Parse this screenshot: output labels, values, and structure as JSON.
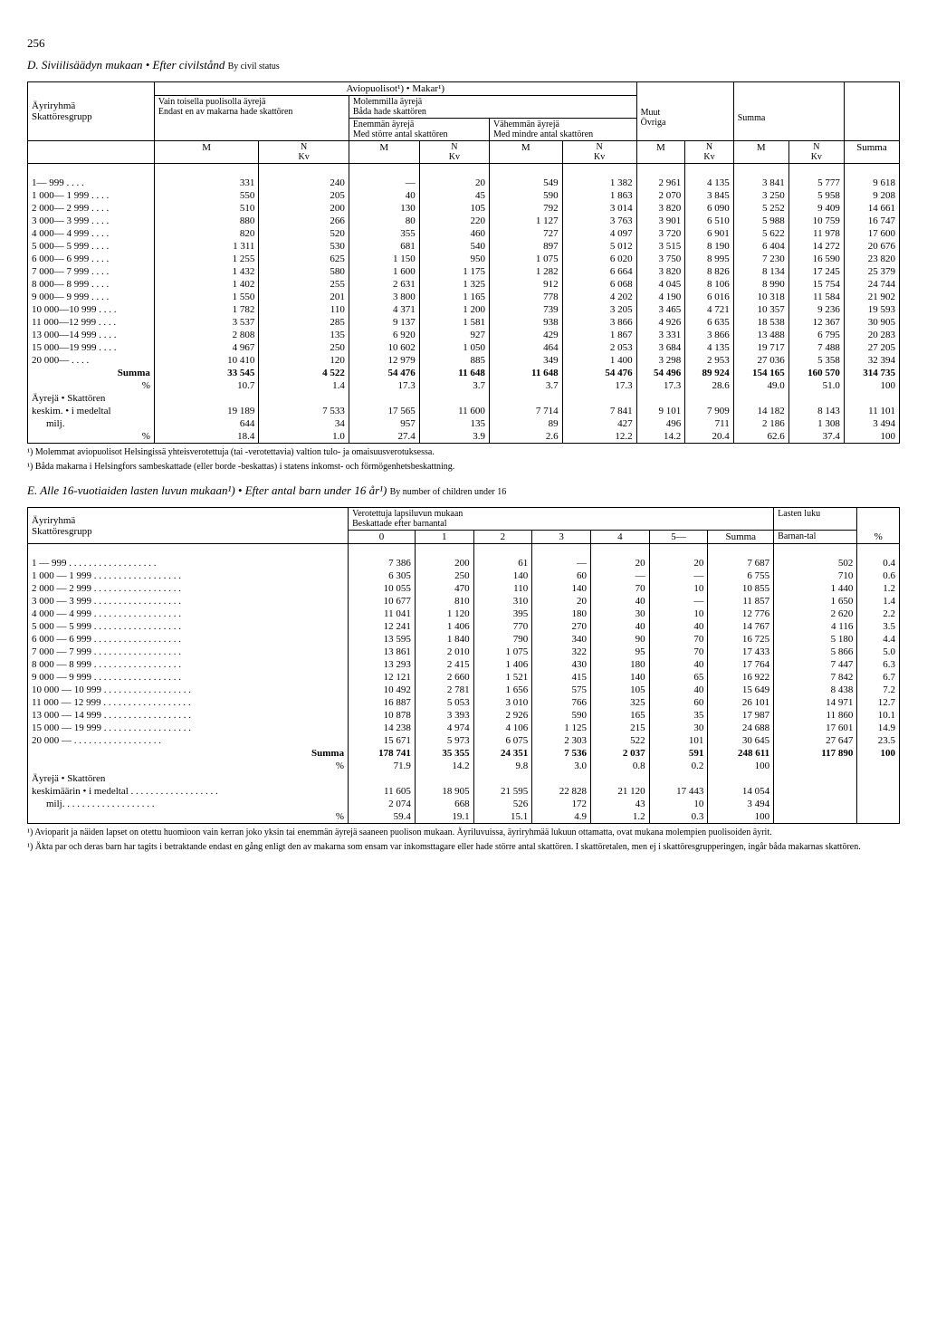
{
  "page_number": "256",
  "tableD": {
    "title_prefix": "D. Siviilisäädyn mukaan",
    "title_bullet": "•",
    "title_it": "Efter civilstånd",
    "title_by": "By civil status",
    "head": {
      "aviopuolisot": "Aviopuolisot¹) • Makar¹)",
      "vain_toisella": "Vain toisella puolisolla äyrejä",
      "molemmilla": "Molemmilla äyrejä",
      "bada": "Båda hade skattören",
      "ayriryhma": "Äyriryhmä",
      "skattoresgrupp": "Skattöresgrupp",
      "endast": "Endast en av makarna hade skattören",
      "enemman": "Enemmän äyrejä",
      "med_storre": "Med större antal skattören",
      "vahemman": "Vähemmän äyrejä",
      "med_mindre": "Med mindre antal skattören",
      "muut": "Muut",
      "ovriga": "Övriga",
      "summa": "Summa",
      "M": "M",
      "NKv": "N",
      "Kv": "Kv"
    },
    "rows": [
      {
        "label": "1— 999",
        "m1": "331",
        "n1": "240",
        "m2": "—",
        "n2": "20",
        "m3": "549",
        "n3": "1 382",
        "m4": "2 961",
        "n4": "4 135",
        "m5": "3 841",
        "n5": "5 777",
        "sum": "9 618"
      },
      {
        "label": "1 000— 1 999",
        "m1": "550",
        "n1": "205",
        "m2": "40",
        "n2": "45",
        "m3": "590",
        "n3": "1 863",
        "m4": "2 070",
        "n4": "3 845",
        "m5": "3 250",
        "n5": "5 958",
        "sum": "9 208"
      },
      {
        "label": "2 000— 2 999",
        "m1": "510",
        "n1": "200",
        "m2": "130",
        "n2": "105",
        "m3": "792",
        "n3": "3 014",
        "m4": "3 820",
        "n4": "6 090",
        "m5": "5 252",
        "n5": "9 409",
        "sum": "14 661"
      },
      {
        "label": "3 000— 3 999",
        "m1": "880",
        "n1": "266",
        "m2": "80",
        "n2": "220",
        "m3": "1 127",
        "n3": "3 763",
        "m4": "3 901",
        "n4": "6 510",
        "m5": "5 988",
        "n5": "10 759",
        "sum": "16 747"
      },
      {
        "label": "4 000— 4 999",
        "m1": "820",
        "n1": "520",
        "m2": "355",
        "n2": "460",
        "m3": "727",
        "n3": "4 097",
        "m4": "3 720",
        "n4": "6 901",
        "m5": "5 622",
        "n5": "11 978",
        "sum": "17 600"
      },
      {
        "label": "5 000— 5 999",
        "m1": "1 311",
        "n1": "530",
        "m2": "681",
        "n2": "540",
        "m3": "897",
        "n3": "5 012",
        "m4": "3 515",
        "n4": "8 190",
        "m5": "6 404",
        "n5": "14 272",
        "sum": "20 676"
      },
      {
        "label": "6 000— 6 999",
        "m1": "1 255",
        "n1": "625",
        "m2": "1 150",
        "n2": "950",
        "m3": "1 075",
        "n3": "6 020",
        "m4": "3 750",
        "n4": "8 995",
        "m5": "7 230",
        "n5": "16 590",
        "sum": "23 820"
      },
      {
        "label": "7 000— 7 999",
        "m1": "1 432",
        "n1": "580",
        "m2": "1 600",
        "n2": "1 175",
        "m3": "1 282",
        "n3": "6 664",
        "m4": "3 820",
        "n4": "8 826",
        "m5": "8 134",
        "n5": "17 245",
        "sum": "25 379"
      },
      {
        "label": "8 000— 8 999",
        "m1": "1 402",
        "n1": "255",
        "m2": "2 631",
        "n2": "1 325",
        "m3": "912",
        "n3": "6 068",
        "m4": "4 045",
        "n4": "8 106",
        "m5": "8 990",
        "n5": "15 754",
        "sum": "24 744"
      },
      {
        "label": "9 000— 9 999",
        "m1": "1 550",
        "n1": "201",
        "m2": "3 800",
        "n2": "1 165",
        "m3": "778",
        "n3": "4 202",
        "m4": "4 190",
        "n4": "6 016",
        "m5": "10 318",
        "n5": "11 584",
        "sum": "21 902"
      },
      {
        "label": "10 000—10 999",
        "m1": "1 782",
        "n1": "110",
        "m2": "4 371",
        "n2": "1 200",
        "m3": "739",
        "n3": "3 205",
        "m4": "3 465",
        "n4": "4 721",
        "m5": "10 357",
        "n5": "9 236",
        "sum": "19 593"
      },
      {
        "label": "11 000—12 999",
        "m1": "3 537",
        "n1": "285",
        "m2": "9 137",
        "n2": "1 581",
        "m3": "938",
        "n3": "3 866",
        "m4": "4 926",
        "n4": "6 635",
        "m5": "18 538",
        "n5": "12 367",
        "sum": "30 905"
      },
      {
        "label": "13 000—14 999",
        "m1": "2 808",
        "n1": "135",
        "m2": "6 920",
        "n2": "927",
        "m3": "429",
        "n3": "1 867",
        "m4": "3 331",
        "n4": "3 866",
        "m5": "13 488",
        "n5": "6 795",
        "sum": "20 283"
      },
      {
        "label": "15 000—19 999",
        "m1": "4 967",
        "n1": "250",
        "m2": "10 602",
        "n2": "1 050",
        "m3": "464",
        "n3": "2 053",
        "m4": "3 684",
        "n4": "4 135",
        "m5": "19 717",
        "n5": "7 488",
        "sum": "27 205"
      },
      {
        "label": "20 000—",
        "m1": "10 410",
        "n1": "120",
        "m2": "12 979",
        "n2": "885",
        "m3": "349",
        "n3": "1 400",
        "m4": "3 298",
        "n4": "2 953",
        "m5": "27 036",
        "n5": "5 358",
        "sum": "32 394"
      }
    ],
    "summa_row": {
      "label": "Summa",
      "m1": "33 545",
      "n1": "4 522",
      "m2": "54 476",
      "n2": "11 648",
      "m3": "11 648",
      "n3": "54 476",
      "m4": "54 496",
      "n4": "89 924",
      "m5": "154 165",
      "n5": "160 570",
      "sum": "314 735"
    },
    "pct_row": {
      "label": "%",
      "m1": "10.7",
      "n1": "1.4",
      "m2": "17.3",
      "n2": "3.7",
      "m3": "3.7",
      "n3": "17.3",
      "m4": "17.3",
      "n4": "28.6",
      "m5": "49.0",
      "n5": "51.0",
      "sum": "100"
    },
    "ayreja_label": "Äyrejä • Skattören",
    "keskim_row": {
      "label": "keskim. • i medeltal",
      "m1": "19 189",
      "n1": "7 533",
      "m2": "17 565",
      "n2": "11 600",
      "m3": "7 714",
      "n3": "7 841",
      "m4": "9 101",
      "n4": "7 909",
      "m5": "14 182",
      "n5": "8 143",
      "sum": "11 101"
    },
    "milj_row": {
      "label": "milj.",
      "m1": "644",
      "n1": "34",
      "m2": "957",
      "n2": "135",
      "m3": "89",
      "n3": "427",
      "m4": "496",
      "n4": "711",
      "m5": "2 186",
      "n5": "1 308",
      "sum": "3 494"
    },
    "pct2_row": {
      "label": "%",
      "m1": "18.4",
      "n1": "1.0",
      "m2": "27.4",
      "n2": "3.9",
      "m3": "2.6",
      "n3": "12.2",
      "m4": "14.2",
      "n4": "20.4",
      "m5": "62.6",
      "n5": "37.4",
      "sum": "100"
    },
    "footnote1": "¹) Molemmat aviopuolisot Helsingissä yhteisverotettuja (tai -verotettavia) valtion tulo- ja omaisuusverotuksessa.",
    "footnote2": "¹) Båda makarna i Helsingfors sambeskattade (eller borde -beskattas) i statens inkomst- och förmögenhetsbeskattning."
  },
  "tableE": {
    "title_prefix": "E. Alle 16-vuotiaiden lasten luvun mukaan¹)",
    "title_bullet": "•",
    "title_it": "Efter antal barn under 16 år¹)",
    "title_by": "By number of children under 16",
    "head": {
      "ayriryhma": "Äyriryhmä",
      "skattoresgrupp": "Skattöresgrupp",
      "verotettuja": "Verotettuja lapsiluvun mukaan",
      "beskattade": "Beskattade efter barnantal",
      "lasten_luku": "Lasten luku",
      "barnantal": "Barnan-tal",
      "c0": "0",
      "c1": "1",
      "c2": "2",
      "c3": "3",
      "c4": "4",
      "c5": "5—",
      "summa": "Summa",
      "pct": "%"
    },
    "rows": [
      {
        "label": "1 — 999",
        "c0": "7 386",
        "c1": "200",
        "c2": "61",
        "c3": "—",
        "c4": "20",
        "c5": "20",
        "sum": "7 687",
        "barn": "502",
        "pct": "0.4"
      },
      {
        "label": "1 000 — 1 999",
        "c0": "6 305",
        "c1": "250",
        "c2": "140",
        "c3": "60",
        "c4": "—",
        "c5": "—",
        "sum": "6 755",
        "barn": "710",
        "pct": "0.6"
      },
      {
        "label": "2 000 — 2 999",
        "c0": "10 055",
        "c1": "470",
        "c2": "110",
        "c3": "140",
        "c4": "70",
        "c5": "10",
        "sum": "10 855",
        "barn": "1 440",
        "pct": "1.2"
      },
      {
        "label": "3 000 — 3 999",
        "c0": "10 677",
        "c1": "810",
        "c2": "310",
        "c3": "20",
        "c4": "40",
        "c5": "—",
        "sum": "11 857",
        "barn": "1 650",
        "pct": "1.4"
      },
      {
        "label": "4 000 — 4 999",
        "c0": "11 041",
        "c1": "1 120",
        "c2": "395",
        "c3": "180",
        "c4": "30",
        "c5": "10",
        "sum": "12 776",
        "barn": "2 620",
        "pct": "2.2"
      },
      {
        "label": "5 000 — 5 999",
        "c0": "12 241",
        "c1": "1 406",
        "c2": "770",
        "c3": "270",
        "c4": "40",
        "c5": "40",
        "sum": "14 767",
        "barn": "4 116",
        "pct": "3.5"
      },
      {
        "label": "6 000 — 6 999",
        "c0": "13 595",
        "c1": "1 840",
        "c2": "790",
        "c3": "340",
        "c4": "90",
        "c5": "70",
        "sum": "16 725",
        "barn": "5 180",
        "pct": "4.4"
      },
      {
        "label": "7 000 — 7 999",
        "c0": "13 861",
        "c1": "2 010",
        "c2": "1 075",
        "c3": "322",
        "c4": "95",
        "c5": "70",
        "sum": "17 433",
        "barn": "5 866",
        "pct": "5.0"
      },
      {
        "label": "8 000 — 8 999",
        "c0": "13 293",
        "c1": "2 415",
        "c2": "1 406",
        "c3": "430",
        "c4": "180",
        "c5": "40",
        "sum": "17 764",
        "barn": "7 447",
        "pct": "6.3"
      },
      {
        "label": "9 000 — 9 999",
        "c0": "12 121",
        "c1": "2 660",
        "c2": "1 521",
        "c3": "415",
        "c4": "140",
        "c5": "65",
        "sum": "16 922",
        "barn": "7 842",
        "pct": "6.7"
      },
      {
        "label": "10 000 — 10 999",
        "c0": "10 492",
        "c1": "2 781",
        "c2": "1 656",
        "c3": "575",
        "c4": "105",
        "c5": "40",
        "sum": "15 649",
        "barn": "8 438",
        "pct": "7.2"
      },
      {
        "label": "11 000 — 12 999",
        "c0": "16 887",
        "c1": "5 053",
        "c2": "3 010",
        "c3": "766",
        "c4": "325",
        "c5": "60",
        "sum": "26 101",
        "barn": "14 971",
        "pct": "12.7"
      },
      {
        "label": "13 000 — 14 999",
        "c0": "10 878",
        "c1": "3 393",
        "c2": "2 926",
        "c3": "590",
        "c4": "165",
        "c5": "35",
        "sum": "17 987",
        "barn": "11 860",
        "pct": "10.1"
      },
      {
        "label": "15 000 — 19 999",
        "c0": "14 238",
        "c1": "4 974",
        "c2": "4 106",
        "c3": "1 125",
        "c4": "215",
        "c5": "30",
        "sum": "24 688",
        "barn": "17 601",
        "pct": "14.9"
      },
      {
        "label": "20 000 —",
        "c0": "15 671",
        "c1": "5 973",
        "c2": "6 075",
        "c3": "2 303",
        "c4": "522",
        "c5": "101",
        "sum": "30 645",
        "barn": "27 647",
        "pct": "23.5"
      }
    ],
    "summa_row": {
      "label": "Summa",
      "c0": "178 741",
      "c1": "35 355",
      "c2": "24 351",
      "c3": "7 536",
      "c4": "2 037",
      "c5": "591",
      "sum": "248 611",
      "barn": "117 890",
      "pct": "100"
    },
    "pct_row": {
      "label": "%",
      "c0": "71.9",
      "c1": "14.2",
      "c2": "9.8",
      "c3": "3.0",
      "c4": "0.8",
      "c5": "0.2",
      "sum": "100",
      "barn": "",
      "pct": ""
    },
    "ayreja_label": "Äyrejä • Skattören",
    "keskim_row": {
      "label": "keskimäärin • i medeltal",
      "c0": "11 605",
      "c1": "18 905",
      "c2": "21 595",
      "c3": "22 828",
      "c4": "21 120",
      "c5": "17 443",
      "sum": "14 054",
      "barn": "",
      "pct": ""
    },
    "milj_row": {
      "label": "milj.",
      "c0": "2 074",
      "c1": "668",
      "c2": "526",
      "c3": "172",
      "c4": "43",
      "c5": "10",
      "sum": "3 494",
      "barn": "",
      "pct": ""
    },
    "pct2_row": {
      "label": "%",
      "c0": "59.4",
      "c1": "19.1",
      "c2": "15.1",
      "c3": "4.9",
      "c4": "1.2",
      "c5": "0.3",
      "sum": "100",
      "barn": "",
      "pct": ""
    },
    "footnote1": "¹) Avioparit ja näiden lapset on otettu huomioon vain kerran joko yksin tai enemmän äyrejä saaneen puolison mukaan. Äyriluvuissa, äyriryhmää lukuun ottamatta, ovat mukana molempien puolisoiden äyrit.",
    "footnote2": "¹) Äkta par och deras barn har tagits i betraktande endast en gång enligt den av makarna som ensam var inkomsttagare eller hade större antal skattören. I skattöretalen, men ej i skattöresgrupperingen, ingår båda makarnas skattören."
  }
}
